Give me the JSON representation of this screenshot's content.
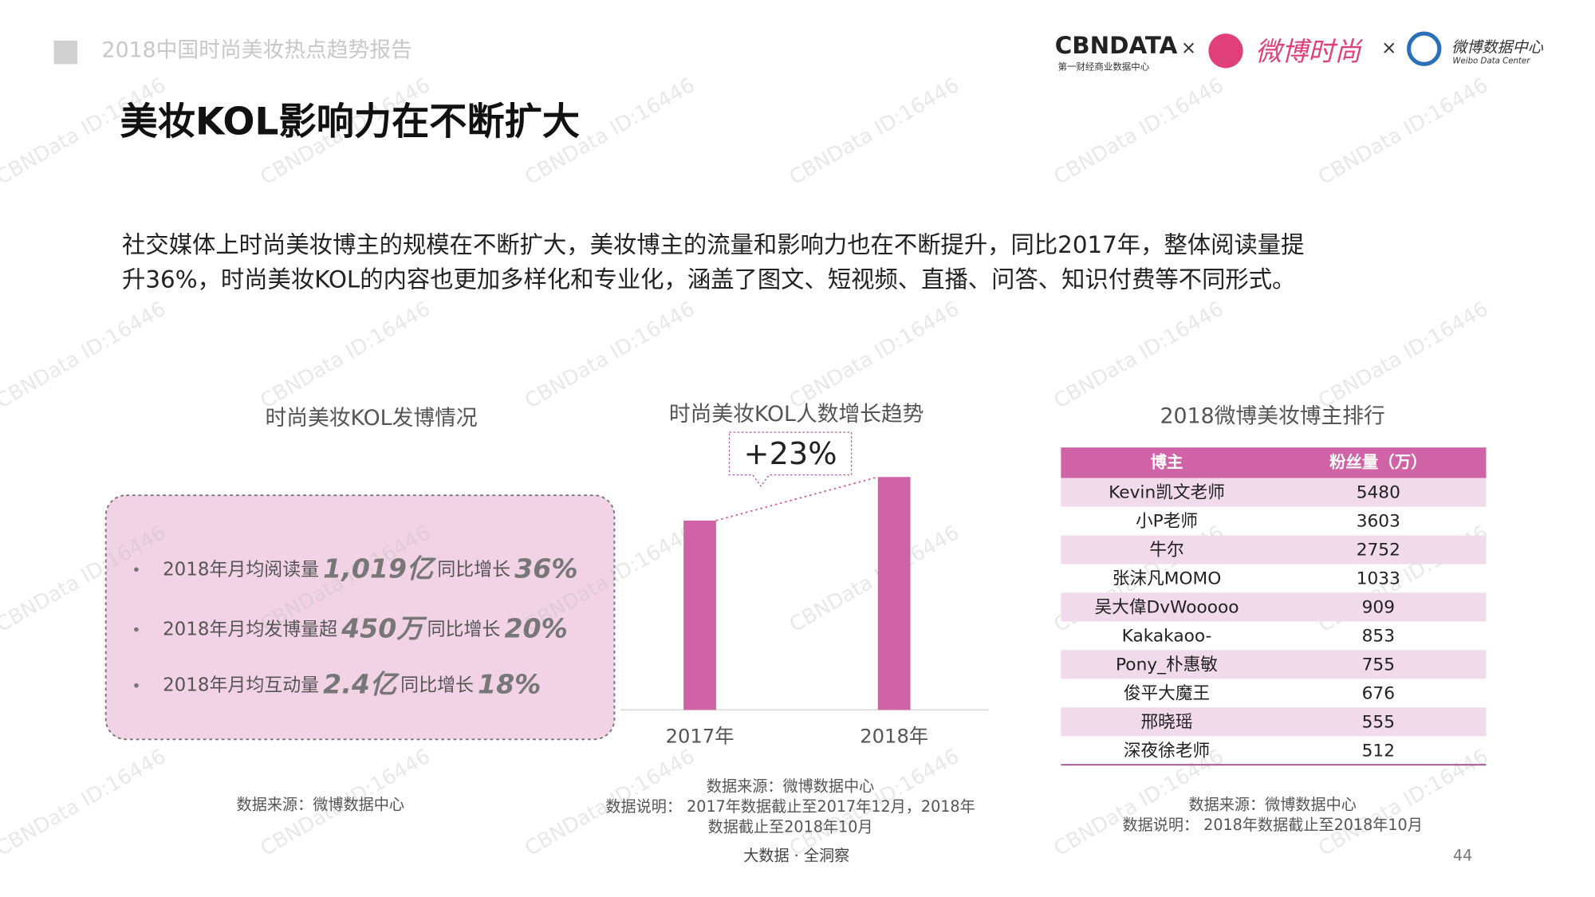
{
  "header": {
    "report_title": "2018中国时尚美妆热点趋势报告",
    "logos": {
      "cbndata": "CBNDATA",
      "cbndata_sub": "第一财经商业数据中心",
      "separator": "×",
      "weibo_fashion": "微博时尚",
      "weibo_data": "微博数据中心",
      "weibo_data_en": "Weibo Data Center"
    }
  },
  "title": "美妆KOL影响力在不断扩大",
  "intro": [
    "社交媒体上时尚美妆博主的规模在不断扩大，美妆博主的流量和影响力也在不断提升，同比2017年，整体阅读量提",
    "升36%，时尚美妆KOL的内容也更加多样化和专业化，涵盖了图文、短视频、直播、问答、知识付费等不同形式。"
  ],
  "kol_posts": {
    "title": "时尚美妆KOL发博情况",
    "items": [
      {
        "label": "2018年月均阅读量",
        "value": "1,019亿",
        "growth_label": "同比增长",
        "growth": "36%"
      },
      {
        "label": "2018年月均发博量超",
        "value": "450万",
        "growth_label": "同比增长",
        "growth": "20%"
      },
      {
        "label": "2018年月均互动量",
        "value": "2.4亿",
        "growth_label": "同比增长",
        "growth": "18%"
      }
    ],
    "source": "数据来源：微博数据中心"
  },
  "chart_data": {
    "type": "bar",
    "title": "时尚美妆KOL人数增长趋势",
    "categories": [
      "2017年",
      "2018年"
    ],
    "values": [
      100,
      123
    ],
    "color": "#d063a6",
    "ylim": [
      0,
      130
    ],
    "annotation": "+23%",
    "source": [
      "数据来源：微博数据中心",
      "数据说明： 2017年数据截止至2017年12月，2018年",
      "数据截止至2018年10月"
    ]
  },
  "ranking": {
    "title": "2018微博美妆博主排行",
    "columns": [
      "博主",
      "粉丝量（万）"
    ],
    "rows": [
      [
        "Kevin凯文老师",
        5480
      ],
      [
        "小P老师",
        3603
      ],
      [
        "牛尔",
        2752
      ],
      [
        "张沫凡MOMO",
        1033
      ],
      [
        "吴大偉DvWooooo",
        909
      ],
      [
        "Kakakaoo-",
        853
      ],
      [
        "Pony_朴惠敏",
        755
      ],
      [
        "俊平大魔王",
        676
      ],
      [
        "邢晓瑶",
        555
      ],
      [
        "深夜徐老师",
        512
      ]
    ],
    "source": [
      "数据来源：微博数据中心",
      "数据说明： 2018年数据截止至2018年10月"
    ]
  },
  "footer": {
    "slogan": "大数据 · 全洞察",
    "page": 44
  },
  "watermark": "CBNData ID:16446"
}
